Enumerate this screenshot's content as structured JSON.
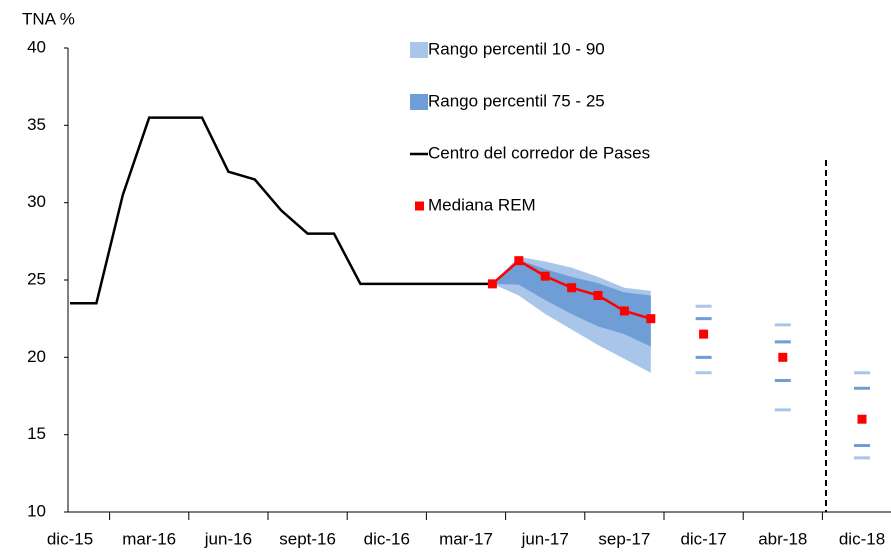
{
  "chart_data": {
    "type": "line",
    "y_label": "TNA %",
    "categories": [
      "dic-15",
      null,
      null,
      "mar-16",
      null,
      null,
      "jun-16",
      null,
      null,
      "sept-16",
      null,
      null,
      "dic-16",
      null,
      null,
      "mar-17",
      null,
      null,
      "jun-17",
      null,
      null,
      "sep-17",
      null,
      null,
      "dic-17",
      null,
      null,
      "abr-18",
      null,
      null,
      "dic-18"
    ],
    "ylim": [
      10,
      40
    ],
    "yticks": [
      10,
      15,
      20,
      25,
      30,
      35,
      40
    ],
    "bands": [
      {
        "name": "Rango percentil 10 - 90",
        "color": "#a9c6ea",
        "upper": [
          null,
          null,
          null,
          null,
          null,
          null,
          null,
          null,
          null,
          null,
          null,
          null,
          null,
          null,
          null,
          null,
          24.75,
          26.5,
          26.2,
          25.8,
          25.2,
          24.5,
          24.3,
          null,
          23.3,
          null,
          null,
          22.1,
          null,
          null,
          19
        ],
        "lower": [
          null,
          null,
          null,
          null,
          null,
          null,
          null,
          null,
          null,
          null,
          null,
          null,
          null,
          null,
          null,
          null,
          24.75,
          24.0,
          22.8,
          21.8,
          20.8,
          19.9,
          19.0,
          null,
          19,
          null,
          null,
          16.6,
          null,
          null,
          13.5
        ]
      },
      {
        "name": "Rango percentil 75 - 25",
        "color": "#6f9dd6",
        "upper": [
          null,
          null,
          null,
          null,
          null,
          null,
          null,
          null,
          null,
          null,
          null,
          null,
          null,
          null,
          null,
          null,
          24.75,
          26.3,
          25.7,
          25.2,
          24.8,
          24.2,
          24.0,
          null,
          22.5,
          null,
          null,
          21,
          null,
          null,
          18
        ],
        "lower": [
          null,
          null,
          null,
          null,
          null,
          null,
          null,
          null,
          null,
          null,
          null,
          null,
          null,
          null,
          null,
          null,
          24.75,
          24.7,
          23.7,
          22.8,
          22.0,
          21.5,
          20.7,
          null,
          20,
          null,
          null,
          18.5,
          null,
          null,
          14.3
        ]
      }
    ],
    "series": [
      {
        "name": "Centro del corredor de Pases",
        "color": "#000000",
        "values": [
          23.5,
          23.5,
          30.5,
          35.5,
          35.5,
          35.5,
          32,
          31.5,
          29.5,
          28,
          28,
          24.75,
          24.75,
          24.75,
          24.75,
          24.75,
          24.75,
          null,
          null,
          null,
          null,
          null,
          null,
          null,
          null,
          null,
          null,
          null,
          null,
          null,
          null
        ]
      },
      {
        "name": "Mediana REM",
        "color": "#ff0000",
        "marker": "square",
        "values": [
          null,
          null,
          null,
          null,
          null,
          null,
          null,
          null,
          null,
          null,
          null,
          null,
          null,
          null,
          null,
          null,
          24.75,
          26.25,
          25.25,
          24.5,
          24,
          23,
          22.5,
          null,
          21.5,
          null,
          null,
          20,
          null,
          null,
          16
        ]
      }
    ]
  }
}
